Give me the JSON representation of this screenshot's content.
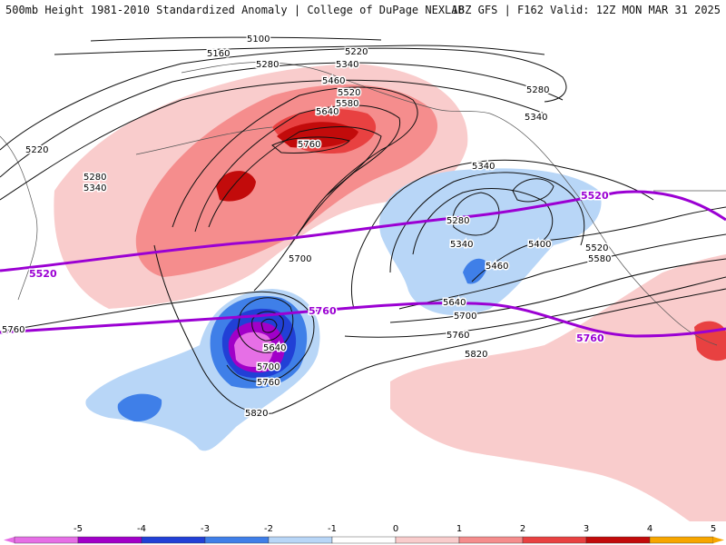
{
  "header": {
    "title_left": "500mb Height 1981-2010 Standardized Anomaly | College of DuPage NEXLAB",
    "title_right": "18Z GFS | F162 Valid: 12Z MON MAR 31 2025"
  },
  "colors": {
    "neg5": "#e66fe6",
    "neg4": "#a100c8",
    "neg3": "#2140d6",
    "neg2": "#3f7fe8",
    "neg1": "#b8d6f7",
    "neutral": "#ffffff",
    "pos1": "#f9cccc",
    "pos2": "#f58d8d",
    "pos3": "#e84141",
    "pos4": "#c20b0b",
    "pos5": "#f7a600",
    "ref_contour": "#9b00d3"
  },
  "contour_labels": [
    "5100",
    "5160",
    "5220",
    "5280",
    "5340",
    "5460",
    "5520",
    "5580",
    "5640",
    "5760",
    "5280",
    "5340",
    "5220",
    "5280",
    "5340",
    "5340",
    "5280",
    "5340",
    "5400",
    "5460",
    "5520",
    "5580",
    "5640",
    "5700",
    "5760",
    "5820",
    "5700",
    "5640",
    "5700",
    "5760",
    "5820",
    "5760"
  ],
  "reference_labels": [
    "5520",
    "5760",
    "5520",
    "5760"
  ],
  "colorbar": {
    "ticks": [
      "-5",
      "-4",
      "-3",
      "-2",
      "-1",
      "0",
      "1",
      "2",
      "3",
      "4",
      "5"
    ]
  }
}
